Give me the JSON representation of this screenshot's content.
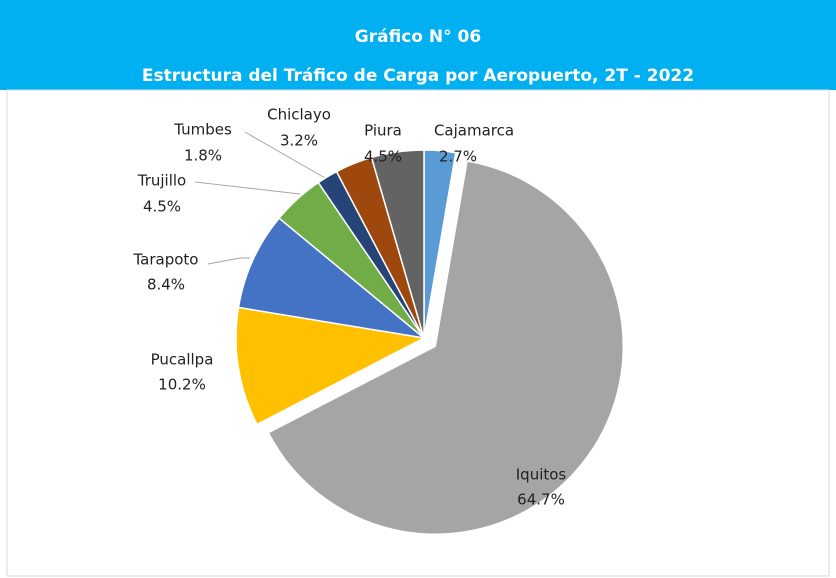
{
  "chart_data": {
    "type": "pie",
    "title": "Gráfico N° 06",
    "subtitle": "Estructura del Tráfico de Carga por Aeropuerto, 2T - 2022",
    "categories": [
      "Cajamarca",
      "Iquitos",
      "Pucallpa",
      "Tarapoto",
      "Trujillo",
      "Tumbes",
      "Chiclayo",
      "Piura"
    ],
    "values": [
      2.7,
      64.7,
      10.2,
      8.4,
      4.5,
      1.8,
      3.2,
      4.5
    ],
    "value_labels": [
      "2.7%",
      "64.7%",
      "10.2%",
      "8.4%",
      "4.5%",
      "1.8%",
      "3.2%",
      "4.5%"
    ],
    "colors": [
      "#5b9bd5",
      "#a5a5a5",
      "#ffc000",
      "#4472c4",
      "#70ad47",
      "#264478",
      "#9e480e",
      "#636363"
    ]
  }
}
